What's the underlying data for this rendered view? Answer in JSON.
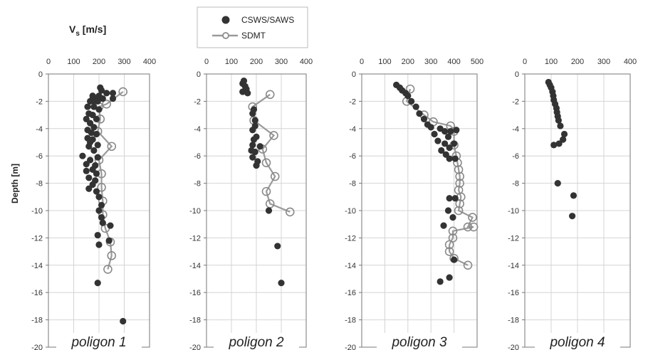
{
  "figure": {
    "vs_label": "V",
    "vs_sub": "s",
    "vs_unit": " [m/s]",
    "ylabel": "Depth [m]"
  },
  "legend": [
    {
      "label": "CSWS/SAWS",
      "marker": "filled-circle"
    },
    {
      "label": "SDMT",
      "marker": "open-circle-line"
    }
  ],
  "colors": {
    "csws": "#333333",
    "sdmt_line": "#9a9a9a",
    "sdmt_marker": "#8a8a8a",
    "grid": "#d4d4d4",
    "axis": "#777777"
  },
  "chart_data": [
    {
      "type": "scatter",
      "title": "poligon 1",
      "xlim": [
        0,
        400
      ],
      "ylim": [
        -20,
        0
      ],
      "xticks": [
        "0",
        "100",
        "200",
        "300",
        "400"
      ],
      "yticks": [
        "0",
        "-2",
        "-4",
        "-6",
        "-8",
        "-10",
        "-12",
        "-14",
        "-16",
        "-18",
        "-20"
      ],
      "grid": true,
      "series": [
        {
          "name": "CSWS/SAWS",
          "style": "points",
          "points": [
            [
              205,
              -1.0
            ],
            [
              210,
              -1.2
            ],
            [
              230,
              -1.4
            ],
            [
              255,
              -1.4
            ],
            [
              175,
              -1.6
            ],
            [
              200,
              -1.6
            ],
            [
              175,
              -1.8
            ],
            [
              190,
              -1.8
            ],
            [
              215,
              -1.8
            ],
            [
              255,
              -1.8
            ],
            [
              165,
              -2.0
            ],
            [
              180,
              -2.0
            ],
            [
              195,
              -2.0
            ],
            [
              155,
              -2.4
            ],
            [
              180,
              -2.4
            ],
            [
              200,
              -2.6
            ],
            [
              160,
              -2.9
            ],
            [
              175,
              -3.0
            ],
            [
              150,
              -3.3
            ],
            [
              190,
              -3.3
            ],
            [
              165,
              -3.6
            ],
            [
              180,
              -3.9
            ],
            [
              155,
              -4.1
            ],
            [
              170,
              -4.3
            ],
            [
              190,
              -4.4
            ],
            [
              155,
              -4.7
            ],
            [
              175,
              -4.8
            ],
            [
              165,
              -5.0
            ],
            [
              195,
              -5.2
            ],
            [
              160,
              -5.3
            ],
            [
              180,
              -5.6
            ],
            [
              135,
              -6.0
            ],
            [
              195,
              -6.1
            ],
            [
              165,
              -6.3
            ],
            [
              150,
              -6.6
            ],
            [
              185,
              -6.7
            ],
            [
              175,
              -7.0
            ],
            [
              150,
              -7.1
            ],
            [
              190,
              -7.3
            ],
            [
              160,
              -7.6
            ],
            [
              185,
              -7.8
            ],
            [
              175,
              -8.1
            ],
            [
              160,
              -8.4
            ],
            [
              190,
              -8.6
            ],
            [
              200,
              -9.0
            ],
            [
              210,
              -9.6
            ],
            [
              200,
              -10.0
            ],
            [
              210,
              -10.5
            ],
            [
              215,
              -10.9
            ],
            [
              245,
              -11.1
            ],
            [
              195,
              -11.8
            ],
            [
              200,
              -12.5
            ],
            [
              240,
              -12.2
            ],
            [
              195,
              -15.3
            ],
            [
              295,
              -18.1
            ]
          ]
        },
        {
          "name": "SDMT",
          "style": "line",
          "points": [
            [
              295,
              -1.3
            ],
            [
              230,
              -2.2
            ],
            [
              200,
              -2.4
            ],
            [
              205,
              -3.3
            ],
            [
              195,
              -4.2
            ],
            [
              250,
              -5.3
            ],
            [
              200,
              -6.3
            ],
            [
              210,
              -7.3
            ],
            [
              210,
              -8.3
            ],
            [
              215,
              -9.3
            ],
            [
              215,
              -10.3
            ],
            [
              225,
              -11.3
            ],
            [
              245,
              -12.3
            ],
            [
              250,
              -13.3
            ],
            [
              235,
              -14.3
            ]
          ]
        }
      ]
    },
    {
      "type": "scatter",
      "title": "poligon 2",
      "xlim": [
        0,
        400
      ],
      "ylim": [
        -20,
        0
      ],
      "xticks": [
        "0",
        "100",
        "200",
        "300",
        "400"
      ],
      "yticks": [
        "0",
        "-2",
        "-4",
        "-6",
        "-8",
        "-10",
        "-12",
        "-14",
        "-16",
        "-18",
        "-20"
      ],
      "grid": true,
      "series": [
        {
          "name": "CSWS/SAWS",
          "style": "points",
          "points": [
            [
              150,
              -0.5
            ],
            [
              145,
              -0.7
            ],
            [
              155,
              -0.9
            ],
            [
              160,
              -1.1
            ],
            [
              145,
              -1.3
            ],
            [
              165,
              -1.4
            ],
            [
              190,
              -2.6
            ],
            [
              185,
              -2.9
            ],
            [
              195,
              -3.4
            ],
            [
              195,
              -3.8
            ],
            [
              185,
              -4.1
            ],
            [
              200,
              -4.6
            ],
            [
              190,
              -4.8
            ],
            [
              185,
              -5.2
            ],
            [
              215,
              -5.3
            ],
            [
              180,
              -5.6
            ],
            [
              195,
              -5.7
            ],
            [
              185,
              -6.1
            ],
            [
              205,
              -6.4
            ],
            [
              200,
              -6.7
            ],
            [
              250,
              -10.0
            ],
            [
              285,
              -12.6
            ],
            [
              300,
              -15.3
            ]
          ]
        },
        {
          "name": "SDMT",
          "style": "line",
          "points": [
            [
              255,
              -1.5
            ],
            [
              185,
              -2.4
            ],
            [
              190,
              -3.4
            ],
            [
              270,
              -4.5
            ],
            [
              225,
              -5.5
            ],
            [
              240,
              -6.5
            ],
            [
              275,
              -7.5
            ],
            [
              240,
              -8.6
            ],
            [
              255,
              -9.5
            ],
            [
              335,
              -10.1
            ]
          ]
        }
      ]
    },
    {
      "type": "scatter",
      "title": "poligon 3",
      "xlim": [
        0,
        500
      ],
      "ylim": [
        -20,
        0
      ],
      "xticks": [
        "0",
        "100",
        "200",
        "300",
        "400",
        "500"
      ],
      "yticks": [
        "0",
        "-2",
        "-4",
        "-6",
        "-8",
        "-10",
        "-12",
        "-14",
        "-16",
        "-18",
        "-20"
      ],
      "grid": true,
      "series": [
        {
          "name": "CSWS/SAWS",
          "style": "points",
          "points": [
            [
              150,
              -0.8
            ],
            [
              165,
              -1.0
            ],
            [
              175,
              -1.2
            ],
            [
              190,
              -1.4
            ],
            [
              200,
              -1.6
            ],
            [
              215,
              -2.0
            ],
            [
              235,
              -2.4
            ],
            [
              250,
              -2.9
            ],
            [
              270,
              -3.3
            ],
            [
              285,
              -3.7
            ],
            [
              300,
              -3.9
            ],
            [
              340,
              -4.0
            ],
            [
              360,
              -4.2
            ],
            [
              385,
              -4.2
            ],
            [
              410,
              -4.1
            ],
            [
              315,
              -4.4
            ],
            [
              375,
              -4.6
            ],
            [
              330,
              -4.9
            ],
            [
              360,
              -5.1
            ],
            [
              400,
              -5.1
            ],
            [
              380,
              -5.4
            ],
            [
              345,
              -5.6
            ],
            [
              365,
              -5.9
            ],
            [
              380,
              -6.2
            ],
            [
              405,
              -6.2
            ],
            [
              380,
              -9.1
            ],
            [
              405,
              -9.1
            ],
            [
              375,
              -10.0
            ],
            [
              395,
              -10.5
            ],
            [
              355,
              -11.1
            ],
            [
              400,
              -13.6
            ],
            [
              380,
              -14.9
            ],
            [
              340,
              -15.2
            ]
          ]
        },
        {
          "name": "SDMT",
          "style": "line",
          "points": [
            [
              210,
              -1.1
            ],
            [
              195,
              -2.0
            ],
            [
              270,
              -3.0
            ],
            [
              310,
              -3.5
            ],
            [
              385,
              -3.8
            ],
            [
              400,
              -4.2
            ],
            [
              400,
              -5.2
            ],
            [
              410,
              -6.0
            ],
            [
              415,
              -6.5
            ],
            [
              420,
              -7.0
            ],
            [
              425,
              -7.5
            ],
            [
              425,
              -8.0
            ],
            [
              420,
              -8.5
            ],
            [
              430,
              -9.0
            ],
            [
              425,
              -9.5
            ],
            [
              420,
              -10.0
            ],
            [
              480,
              -10.5
            ],
            [
              460,
              -11.2
            ],
            [
              485,
              -11.2
            ],
            [
              395,
              -11.5
            ],
            [
              395,
              -12.0
            ],
            [
              380,
              -12.5
            ],
            [
              380,
              -13.0
            ],
            [
              400,
              -13.5
            ],
            [
              460,
              -14.0
            ]
          ]
        }
      ]
    },
    {
      "type": "scatter",
      "title": "poligon 4",
      "xlim": [
        0,
        400
      ],
      "ylim": [
        -20,
        0
      ],
      "xticks": [
        "0",
        "100",
        "200",
        "300",
        "400"
      ],
      "yticks": [
        "0",
        "-2",
        "-4",
        "-6",
        "-8",
        "-10",
        "-12",
        "-14",
        "-16",
        "-18",
        "-20"
      ],
      "grid": true,
      "series": [
        {
          "name": "CSWS/SAWS",
          "style": "points",
          "points": [
            [
              90,
              -0.6
            ],
            [
              95,
              -0.8
            ],
            [
              100,
              -1.0
            ],
            [
              105,
              -1.3
            ],
            [
              108,
              -1.6
            ],
            [
              110,
              -1.9
            ],
            [
              115,
              -2.2
            ],
            [
              120,
              -2.5
            ],
            [
              122,
              -2.8
            ],
            [
              125,
              -3.1
            ],
            [
              128,
              -3.4
            ],
            [
              135,
              -3.8
            ],
            [
              150,
              -4.4
            ],
            [
              145,
              -4.8
            ],
            [
              130,
              -5.1
            ],
            [
              110,
              -5.2
            ],
            [
              125,
              -8.0
            ],
            [
              185,
              -8.9
            ],
            [
              180,
              -10.4
            ]
          ]
        }
      ]
    }
  ]
}
